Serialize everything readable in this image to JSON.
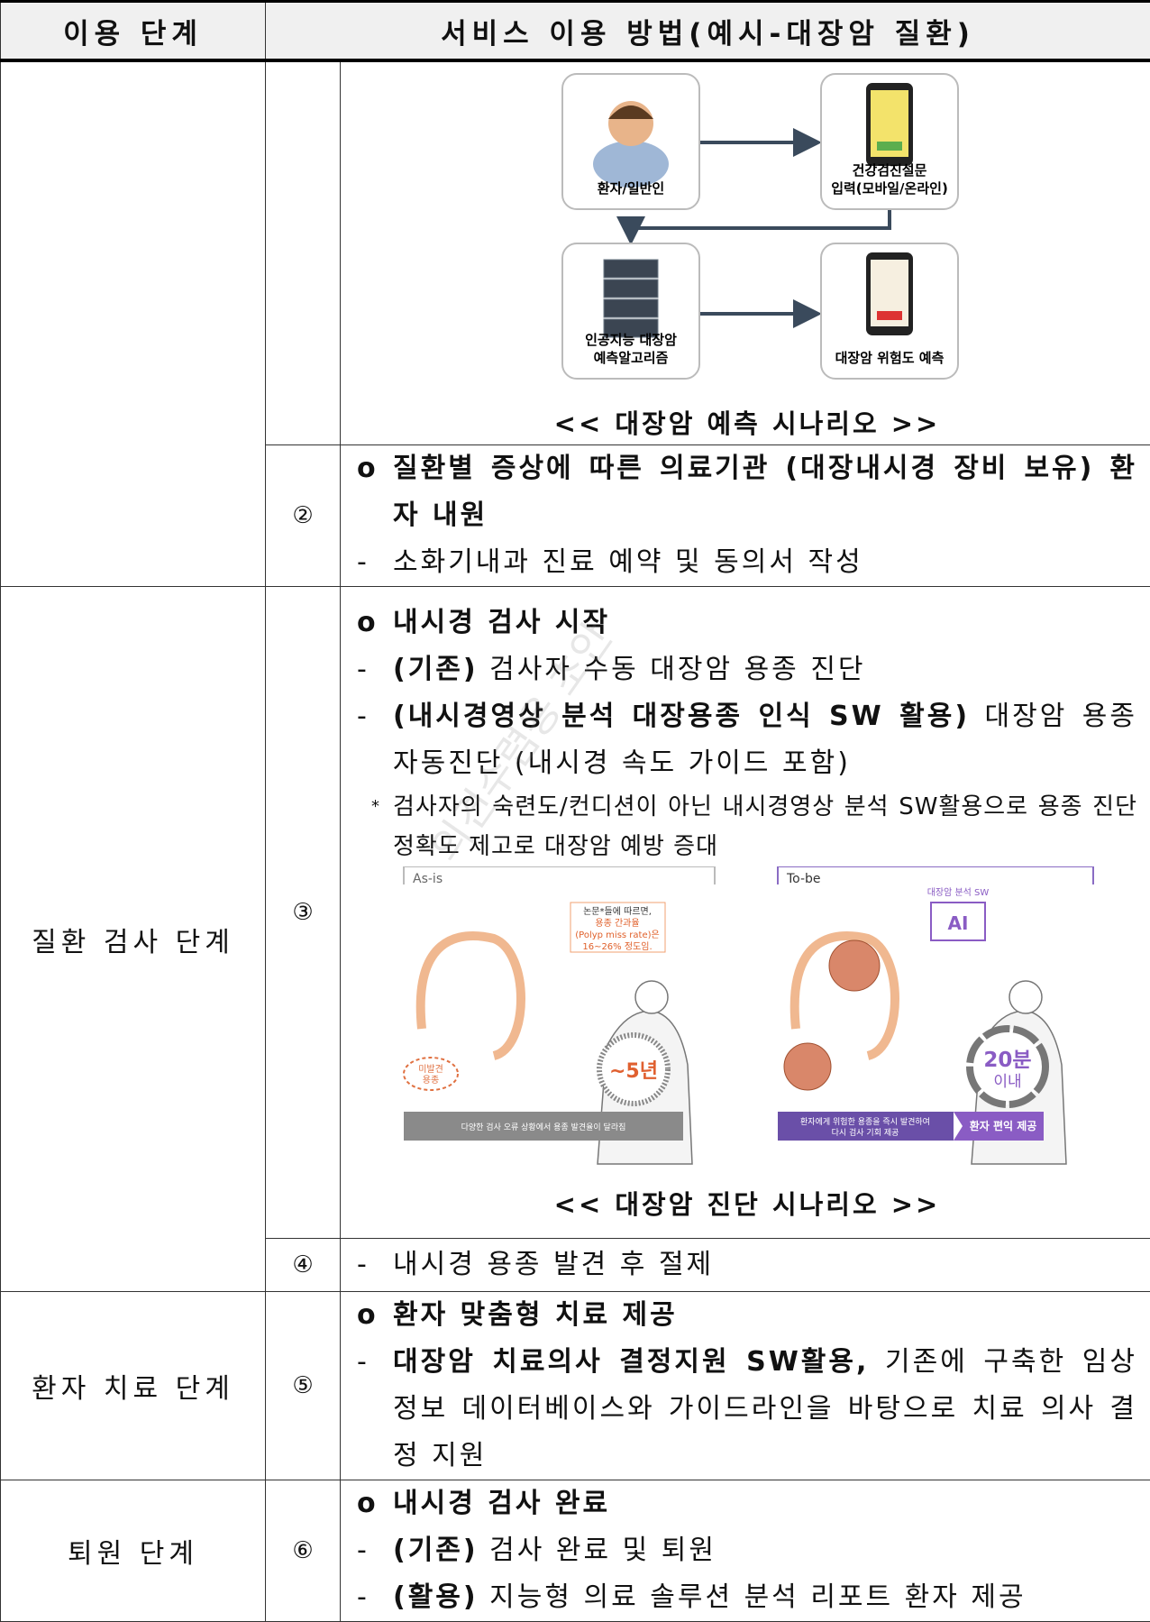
{
  "header": {
    "stage": "이용 단계",
    "method": "서비스 이용 방법(예시-대장암 질환)"
  },
  "watermark": "의견수렴용 초안",
  "sections": [
    {
      "rows": [
        {
          "figure": {
            "nodes": [
              {
                "lines": [
                  "환자/일반인"
                ]
              },
              {
                "lines": [
                  "건강검진설문",
                  "입력(모바일/온라인)"
                ]
              },
              {
                "lines": [
                  "인공지능 대장암",
                  "예측알고리즘"
                ]
              },
              {
                "lines": [
                  "대장암 위험도 예측"
                ]
              }
            ]
          },
          "caption": "<< 대장암 예측 시나리오 >>"
        },
        {
          "number": "②",
          "items": [
            {
              "marker": "o",
              "strong": "질환별 증상에 따른 의료기관 (대장내시경 장비 보유) 환자 내원"
            },
            {
              "marker": "-",
              "text": "소화기내과 진료 예약 및 동의서 작성"
            }
          ]
        }
      ]
    },
    {
      "stage": "질환 검사 단계",
      "rows": [
        {
          "number": "③",
          "items": [
            {
              "marker": "o",
              "strong": "내시경 검사 시작"
            },
            {
              "marker": "-",
              "strong": "(기존)",
              "text": "검사자 수동 대장암 용종 진단"
            },
            {
              "marker": "-",
              "strong": "(내시경영상 분석 대장용종 인식 SW 활용)",
              "text": "대장암 용종 자동진단 (내시경 속도 가이드 포함)"
            },
            {
              "marker": "*",
              "note": "검사자의 숙련도/컨디션이 아닌 내시경영상 분석 SW활용으로 용종 진단 정확도 제고로 대장암 예방 증대"
            }
          ],
          "figure2": {
            "asis": "As-is",
            "tobe": "To-be",
            "asis_note": [
              "논문*들에 따르면,",
              "용종 간과율",
              "(Polyp miss rate)은",
              "16~26% 정도임."
            ],
            "missed": [
              "미발견",
              "용종"
            ],
            "time_asis": "~5년",
            "sw": "대장암 분석 SW",
            "ai": "AI",
            "time_tobe": [
              "20분",
              "이내"
            ],
            "banner_asis": "다양한 검사 오류 상황에서 용종 발견율이 달라짐",
            "banner_tobe": [
              "환자에게 위험한 용종을 즉시 발견하여",
              "다시 검사 기회 제공"
            ],
            "benefit": "환자 편익 제공"
          },
          "caption": "<< 대장암 진단 시나리오 >>"
        },
        {
          "number": "④",
          "items": [
            {
              "marker": "-",
              "text": "내시경 용종 발견 후 절제"
            }
          ]
        }
      ]
    },
    {
      "stage": "환자 치료 단계",
      "rows": [
        {
          "number": "⑤",
          "items": [
            {
              "marker": "o",
              "strong": "환자 맞춤형 치료 제공"
            },
            {
              "marker": "-",
              "strong": "대장암 치료의사 결정지원 SW활용,",
              "text": "기존에 구축한 임상 정보 데이터베이스와 가이드라인을 바탕으로 치료 의사 결정 지원"
            }
          ]
        }
      ]
    },
    {
      "stage": "퇴원 단계",
      "rows": [
        {
          "number": "⑥",
          "items": [
            {
              "marker": "o",
              "strong": "내시경 검사 완료"
            },
            {
              "marker": "-",
              "strong": "(기존)",
              "text": "검사 완료 및 퇴원"
            },
            {
              "marker": "-",
              "strong": "(활용)",
              "text": "지능형 의료 솔루션 분석 리포트 환자 제공"
            }
          ]
        }
      ]
    }
  ]
}
